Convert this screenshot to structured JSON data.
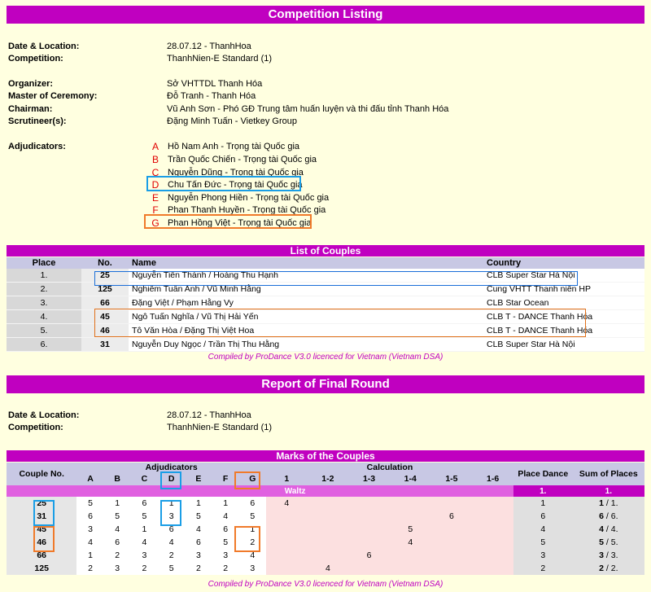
{
  "competition_listing": {
    "title": "Competition Listing",
    "fields": [
      {
        "label": "Date & Location:",
        "value": "28.07.12 -  ThanhHoa"
      },
      {
        "label": "Competition:",
        "value": "ThanhNien-E  Standard (1)"
      },
      {
        "label": "Organizer:",
        "value": "Sở VHTTDL Thanh Hóa"
      },
      {
        "label": "Master of Ceremony:",
        "value": "Đỗ Tranh - Thanh Hóa"
      },
      {
        "label": "Chairman:",
        "value": "Vũ Anh Sơn - Phó GĐ Trung tâm huấn luyện và thi đấu tỉnh Thanh Hóa"
      },
      {
        "label": "Scrutineer(s):",
        "value": "Đặng Minh Tuấn - Vietkey Group"
      }
    ],
    "adjudicators_label": "Adjudicators:",
    "adjudicators": [
      {
        "letter": "A",
        "name": "Hồ Nam Anh - Trọng tài Quốc gia"
      },
      {
        "letter": "B",
        "name": "Trần Quốc Chiến - Trọng tài Quốc gia"
      },
      {
        "letter": "C",
        "name": "Nguyễn Dũng - Trọng tài Quốc gia"
      },
      {
        "letter": "D",
        "name": "Chu Tấn Đức - Trọng tài Quốc gia"
      },
      {
        "letter": "E",
        "name": "Nguyễn Phong Hiền - Trọng tài Quốc gia"
      },
      {
        "letter": "F",
        "name": "Phan Thanh Huyền - Trọng tài Quốc gia"
      },
      {
        "letter": "G",
        "name": "Phan Hồng Việt  - Trọng tài Quốc gia"
      }
    ]
  },
  "couples": {
    "title": "List of Couples",
    "headers": {
      "place": "Place",
      "no": "No.",
      "name": "Name",
      "country": "Country"
    },
    "rows": [
      {
        "place": "1.",
        "no": "25",
        "name": "Nguyễn Tiến Thành / Hoàng Thu Hạnh",
        "country": "CLB Super Star Hà Nội"
      },
      {
        "place": "2.",
        "no": "125",
        "name": "Nghiêm Tuấn Anh / Vũ Minh Hằng",
        "country": "Cung VHTT Thanh niên HP"
      },
      {
        "place": "3.",
        "no": "66",
        "name": "Đặng Việt / Phạm Hằng Vy",
        "country": "CLB Star Ocean"
      },
      {
        "place": "4.",
        "no": "45",
        "name": "Ngô Tuấn Nghĩa / Vũ Thị Hải Yến",
        "country": "CLB T - DANCE Thanh Hóa"
      },
      {
        "place": "5.",
        "no": "46",
        "name": "Tô Văn Hòa / Đặng Thị Việt Hoa",
        "country": "CLB T - DANCE Thanh Hóa"
      },
      {
        "place": "6.",
        "no": "31",
        "name": "Nguyễn Duy Ngọc / Trần Thị Thu Hằng",
        "country": "CLB Super Star Hà Nội"
      }
    ],
    "credit": "Compiled by ProDance V3.0 licenced for Vietnam (Vietnam DSA)"
  },
  "final_round": {
    "title": "Report of Final Round",
    "fields": [
      {
        "label": "Date & Location:",
        "value": "28.07.12 -  ThanhHoa"
      },
      {
        "label": "Competition:",
        "value": "ThanhNien-E  Standard (1)"
      }
    ]
  },
  "marks": {
    "title": "Marks of the Couples",
    "headers": {
      "couple_no": "Couple No.",
      "adjudicators": "Adjudicators",
      "calculation": "Calculation",
      "place_dance": "Place Dance",
      "sum_of_places": "Sum of Places"
    },
    "adj_letters": [
      "A",
      "B",
      "C",
      "D",
      "E",
      "F",
      "G"
    ],
    "calc_cols": [
      "1",
      "1-2",
      "1-3",
      "1-4",
      "1-5",
      "1-6"
    ],
    "dance": {
      "name": "Waltz",
      "place_header": "1.",
      "sum_header": "1."
    },
    "rows": [
      {
        "no": "25",
        "marks": [
          "5",
          "1",
          "6",
          "1",
          "1",
          "1",
          "6"
        ],
        "calc": [
          "4",
          "",
          "",
          "",
          "",
          ""
        ],
        "place": "1",
        "sum_bold": "1",
        "sum_rest": " / 1."
      },
      {
        "no": "31",
        "marks": [
          "6",
          "5",
          "5",
          "3",
          "5",
          "4",
          "5"
        ],
        "calc": [
          "",
          "",
          "",
          "",
          "6",
          ""
        ],
        "place": "6",
        "sum_bold": "6",
        "sum_rest": " / 6."
      },
      {
        "no": "45",
        "marks": [
          "3",
          "4",
          "1",
          "6",
          "4",
          "6",
          "1"
        ],
        "calc": [
          "",
          "",
          "",
          "5",
          "",
          ""
        ],
        "place": "4",
        "sum_bold": "4",
        "sum_rest": " / 4."
      },
      {
        "no": "46",
        "marks": [
          "4",
          "6",
          "4",
          "4",
          "6",
          "5",
          "2"
        ],
        "calc": [
          "",
          "",
          "",
          "4",
          "",
          ""
        ],
        "place": "5",
        "sum_bold": "5",
        "sum_rest": " / 5."
      },
      {
        "no": "66",
        "marks": [
          "1",
          "2",
          "3",
          "2",
          "3",
          "3",
          "4"
        ],
        "calc": [
          "",
          "",
          "6",
          "",
          "",
          ""
        ],
        "place": "3",
        "sum_bold": "3",
        "sum_rest": " / 3."
      },
      {
        "no": "125",
        "marks": [
          "2",
          "3",
          "2",
          "5",
          "2",
          "2",
          "3"
        ],
        "calc": [
          "",
          "4",
          "",
          "",
          "",
          ""
        ],
        "place": "2",
        "sum_bold": "2",
        "sum_rest": " / 2."
      }
    ],
    "credit": "Compiled by ProDance V3.0 licenced for Vietnam (Vietnam DSA)"
  },
  "colors": {
    "banner": "#c000c0",
    "header_bg": "#c8c8e4",
    "page_bg": "#ffffe0",
    "highlight_blue": "#1a9ee6",
    "highlight_orange": "#f07a2a"
  }
}
